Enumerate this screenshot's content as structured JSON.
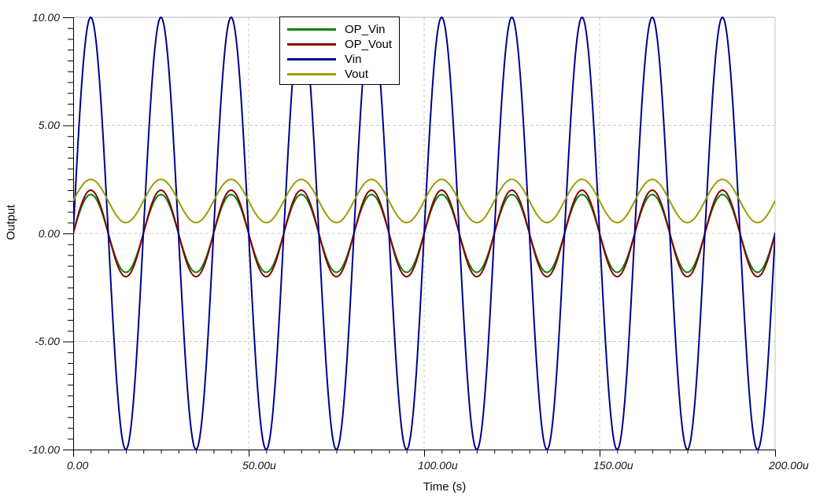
{
  "app": {
    "background": "#ffffff",
    "description": "transient-analysis-waveform-plot"
  },
  "chart_data": {
    "type": "line",
    "title": "",
    "xlabel": "Time (s)",
    "ylabel": "Output",
    "xlim_us": [
      0,
      200
    ],
    "ylim": [
      -10,
      10
    ],
    "x_tick_labels": [
      "0.00",
      "50.00u",
      "100.00u",
      "150.00u",
      "200.00u"
    ],
    "x_tick_values_us": [
      0,
      50,
      100,
      150,
      200
    ],
    "y_tick_labels": [
      "10.00",
      "5.00",
      "0.00",
      "-5.00",
      "-10.00"
    ],
    "y_tick_values": [
      10,
      5,
      0,
      -5,
      -10
    ],
    "x_minor_step_us": 5,
    "y_minor_step": 0.5,
    "grid": {
      "style": "dashed",
      "color": "#c8c8c8",
      "h_dashed_at": [
        5,
        0,
        -5
      ],
      "v_dashed_at_us": [
        50,
        100,
        150
      ],
      "top_border_at": 10,
      "top_border_color": "#b3b3b3",
      "right_border_at_us": 200,
      "right_border_color": "#c0c0c0"
    },
    "legend_position": "top-center-inside",
    "series": [
      {
        "name": "OP_Vin",
        "color": "#0a820a",
        "waveform": "sine",
        "amplitude_V": 1.8,
        "offset_V": 0,
        "period_us": 20,
        "phase_deg": 0
      },
      {
        "name": "OP_Vout",
        "color": "#8b0000",
        "waveform": "sine",
        "amplitude_V": 2.0,
        "offset_V": 0,
        "period_us": 20,
        "phase_deg": 0
      },
      {
        "name": "Vin",
        "color": "#00008b",
        "waveform": "sine",
        "amplitude_V": 10.0,
        "offset_V": 0,
        "period_us": 20,
        "phase_deg": 0
      },
      {
        "name": "Vout",
        "color": "#9c9c00",
        "waveform": "sine",
        "amplitude_V": 1.0,
        "offset_V": 1.5,
        "period_us": 20,
        "phase_deg": 0
      }
    ],
    "draw_order": [
      "OP_Vin",
      "OP_Vout",
      "Vin",
      "Vout"
    ],
    "axis_color": "#000000"
  },
  "legend": {
    "items": [
      {
        "label": "OP_Vin",
        "color": "#0a820a"
      },
      {
        "label": "OP_Vout",
        "color": "#8b0000"
      },
      {
        "label": "Vin",
        "color": "#00008b"
      },
      {
        "label": "Vout",
        "color": "#9c9c00"
      }
    ]
  }
}
